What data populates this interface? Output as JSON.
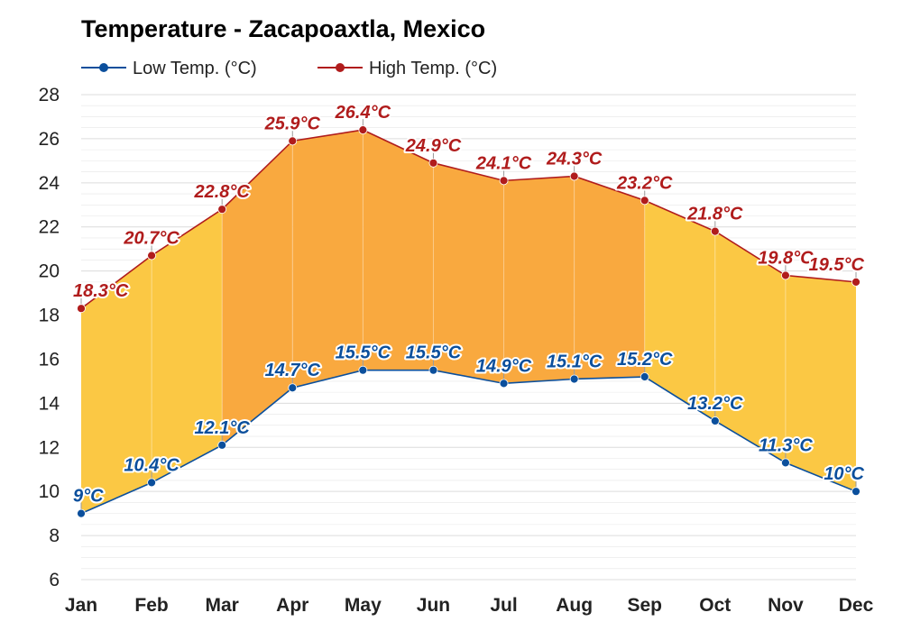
{
  "chart_data": {
    "type": "area",
    "title": "Temperature - Zacapoaxtla, Mexico",
    "categories": [
      "Jan",
      "Feb",
      "Mar",
      "Apr",
      "May",
      "Jun",
      "Jul",
      "Aug",
      "Sep",
      "Oct",
      "Nov",
      "Dec"
    ],
    "series": [
      {
        "name": "Low Temp. (°C)",
        "color": "#0b4f9c",
        "values": [
          9,
          10.4,
          12.1,
          14.7,
          15.5,
          15.5,
          14.9,
          15.1,
          15.2,
          13.2,
          11.3,
          10
        ],
        "labels": [
          "9°C",
          "10.4°C",
          "12.1°C",
          "14.7°C",
          "15.5°C",
          "15.5°C",
          "14.9°C",
          "15.1°C",
          "15.2°C",
          "13.2°C",
          "11.3°C",
          "10°C"
        ]
      },
      {
        "name": "High Temp. (°C)",
        "color": "#b01c1c",
        "values": [
          18.3,
          20.7,
          22.8,
          25.9,
          26.4,
          24.9,
          24.1,
          24.3,
          23.2,
          21.8,
          19.8,
          19.5
        ],
        "labels": [
          "18.3°C",
          "20.7°C",
          "22.8°C",
          "25.9°C",
          "26.4°C",
          "24.9°C",
          "24.1°C",
          "24.3°C",
          "23.2°C",
          "21.8°C",
          "19.8°C",
          "19.5°C"
        ]
      }
    ],
    "fill_colors": {
      "cool": "#fbc844",
      "warm": "#f9a93f",
      "grid": "#e6e6e6"
    },
    "ylim": [
      6,
      28
    ],
    "yticks": [
      "6",
      "8",
      "10",
      "12",
      "14",
      "16",
      "18",
      "20",
      "22",
      "24",
      "26",
      "28"
    ],
    "grid": true,
    "legend": "top-left"
  }
}
